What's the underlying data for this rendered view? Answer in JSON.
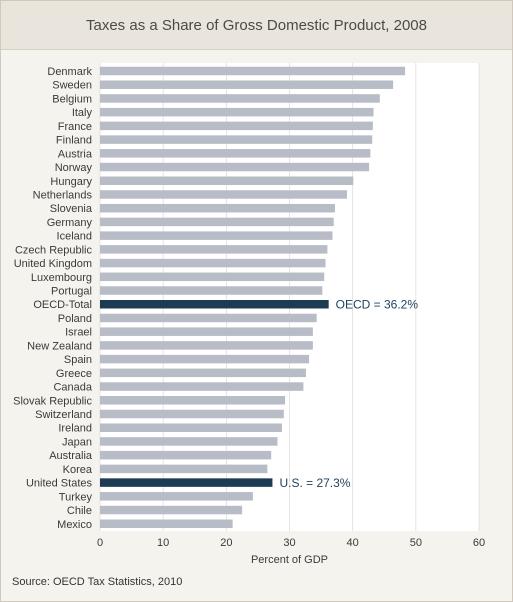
{
  "title": "Taxes as a Share of Gross Domestic Product, 2008",
  "source": "Source: OECD Tax Statistics, 2010",
  "colors": {
    "bar": "#b8bcc6",
    "highlight": "#1d3b53",
    "plot_bg": "#ffffff",
    "grid": "#d9d9d9"
  },
  "chart_data": {
    "type": "bar",
    "orientation": "horizontal",
    "title": "Taxes as a Share of Gross Domestic Product, 2008",
    "xlabel": "Percent of GDP",
    "ylabel": "",
    "xlim": [
      0,
      60
    ],
    "xticks": [
      0,
      10,
      20,
      30,
      40,
      50,
      60
    ],
    "grid": true,
    "categories": [
      "Denmark",
      "Sweden",
      "Belgium",
      "Italy",
      "France",
      "Finland",
      "Austria",
      "Norway",
      "Hungary",
      "Netherlands",
      "Slovenia",
      "Germany",
      "Iceland",
      "Czech Republic",
      "United Kingdom",
      "Luxembourg",
      "Portugal",
      "OECD-Total",
      "Poland",
      "Israel",
      "New Zealand",
      "Spain",
      "Greece",
      "Canada",
      "Slovak Republic",
      "Switzerland",
      "Ireland",
      "Japan",
      "Australia",
      "Korea",
      "United States",
      "Turkey",
      "Chile",
      "Mexico"
    ],
    "values": [
      48.3,
      46.4,
      44.3,
      43.3,
      43.2,
      43.1,
      42.8,
      42.6,
      40.1,
      39.1,
      37.2,
      37.0,
      36.8,
      36.0,
      35.7,
      35.5,
      35.2,
      36.2,
      34.3,
      33.7,
      33.7,
      33.1,
      32.6,
      32.2,
      29.3,
      29.1,
      28.8,
      28.1,
      27.1,
      26.5,
      27.3,
      24.2,
      22.5,
      21.0
    ],
    "highlighted": [
      "OECD-Total",
      "United States"
    ],
    "annotations": [
      {
        "category": "OECD-Total",
        "text": "OECD = 36.2%"
      },
      {
        "category": "United States",
        "text": "U.S. = 27.3%"
      }
    ]
  }
}
